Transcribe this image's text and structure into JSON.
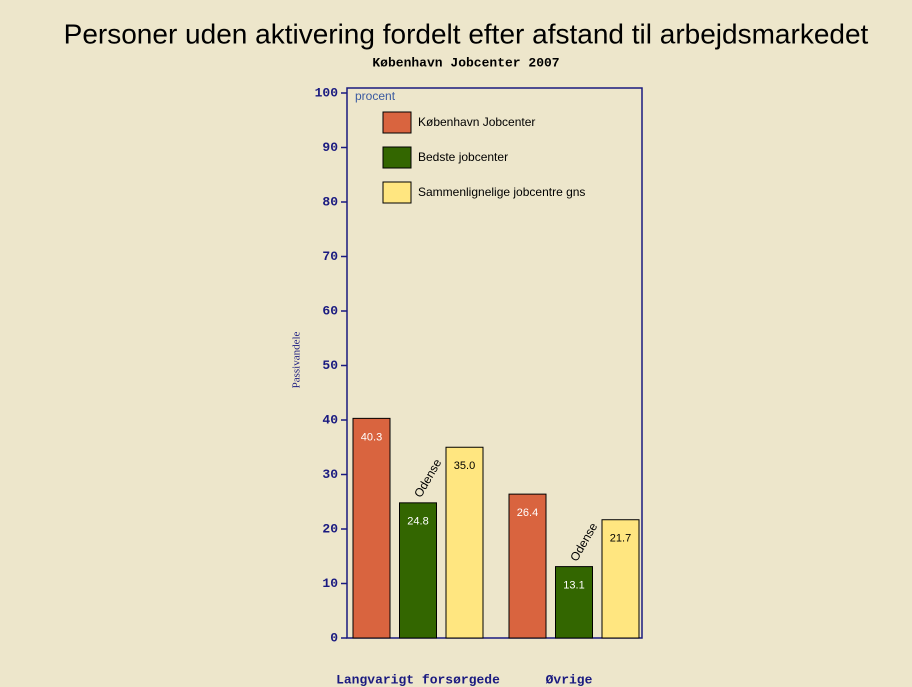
{
  "chart_data": {
    "type": "bar",
    "title": "Personer uden aktivering fordelt efter afstand til arbejdsmarkedet",
    "subtitle": "København Jobcenter 2007",
    "y_label": "Passivandele",
    "unit_label": "procent",
    "categories": [
      "Langvarigt forsørgede",
      "Øvrige"
    ],
    "series": [
      {
        "name": "København Jobcenter",
        "color": "#d9643f",
        "label_color": "#ffffff",
        "values": [
          40.3,
          26.4
        ],
        "value_labels": [
          "40.3",
          "26.4"
        ]
      },
      {
        "name": "Bedste jobcenter",
        "color": "#336600",
        "label_color": "#ffffff",
        "values": [
          24.8,
          13.1
        ],
        "value_labels": [
          "24.8",
          "13.1"
        ]
      },
      {
        "name": "Sammenlignelige jobcentre gns",
        "color": "#ffe680",
        "label_color": "#000000",
        "values": [
          35.0,
          21.7
        ],
        "value_labels": [
          "35.0",
          "21.7"
        ]
      }
    ],
    "annotations": [
      "Odense",
      "Odense"
    ],
    "ylim": [
      0,
      100
    ],
    "yticks": [
      0,
      10,
      20,
      30,
      40,
      50,
      60,
      70,
      80,
      90,
      100
    ]
  }
}
